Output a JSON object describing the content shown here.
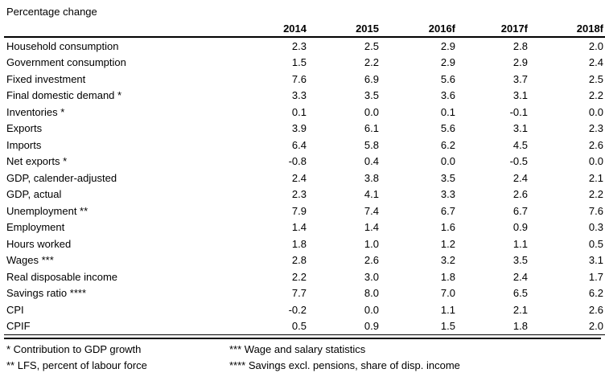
{
  "chart_data": {
    "type": "table",
    "title": "Percentage change",
    "columns": [
      "2014",
      "2015",
      "2016f",
      "2017f",
      "2018f"
    ],
    "rows": [
      {
        "label": "Household consumption",
        "values": [
          "2.3",
          "2.5",
          "2.9",
          "2.8",
          "2.0"
        ]
      },
      {
        "label": "Government consumption",
        "values": [
          "1.5",
          "2.2",
          "2.9",
          "2.9",
          "2.4"
        ]
      },
      {
        "label": "Fixed investment",
        "values": [
          "7.6",
          "6.9",
          "5.6",
          "3.7",
          "2.5"
        ]
      },
      {
        "label": "Final domestic demand *",
        "values": [
          "3.3",
          "3.5",
          "3.6",
          "3.1",
          "2.2"
        ]
      },
      {
        "label": "Inventories *",
        "values": [
          "0.1",
          "0.0",
          "0.1",
          "-0.1",
          "0.0"
        ]
      },
      {
        "label": "Exports",
        "values": [
          "3.9",
          "6.1",
          "5.6",
          "3.1",
          "2.3"
        ]
      },
      {
        "label": "Imports",
        "values": [
          "6.4",
          "5.8",
          "6.2",
          "4.5",
          "2.6"
        ]
      },
      {
        "label": "Net exports *",
        "values": [
          "-0.8",
          "0.4",
          "0.0",
          "-0.5",
          "0.0"
        ]
      },
      {
        "label": "GDP, calender-adjusted",
        "values": [
          "2.4",
          "3.8",
          "3.5",
          "2.4",
          "2.1"
        ]
      },
      {
        "label": "GDP, actual",
        "values": [
          "2.3",
          "4.1",
          "3.3",
          "2.6",
          "2.2"
        ]
      },
      {
        "label": "Unemployment **",
        "values": [
          "7.9",
          "7.4",
          "6.7",
          "6.7",
          "7.6"
        ]
      },
      {
        "label": "Employment",
        "values": [
          "1.4",
          "1.4",
          "1.6",
          "0.9",
          "0.3"
        ]
      },
      {
        "label": "Hours worked",
        "values": [
          "1.8",
          "1.0",
          "1.2",
          "1.1",
          "0.5"
        ]
      },
      {
        "label": "Wages ***",
        "values": [
          "2.8",
          "2.6",
          "3.2",
          "3.5",
          "3.1"
        ]
      },
      {
        "label": "Real disposable income",
        "values": [
          "2.2",
          "3.0",
          "1.8",
          "2.4",
          "1.7"
        ]
      },
      {
        "label": "Savings ratio ****",
        "values": [
          "7.7",
          "8.0",
          "7.0",
          "6.5",
          "6.2"
        ]
      },
      {
        "label": "CPI",
        "values": [
          "-0.2",
          "0.0",
          "1.1",
          "2.1",
          "2.6"
        ]
      },
      {
        "label": "CPIF",
        "values": [
          "0.5",
          "0.9",
          "1.5",
          "1.8",
          "2.0"
        ]
      }
    ],
    "footnotes": [
      "* Contribution to GDP growth",
      "** LFS, percent of labour force",
      "*** Wage and salary statistics",
      "**** Savings excl. pensions, share of disp. income"
    ],
    "layout": {
      "text_color": "#000000",
      "rule_color": "#000000",
      "background": "#ffffff",
      "gridlines": "none",
      "header_rule": "thick",
      "bottom_rule": "thin-plus-thick"
    }
  }
}
